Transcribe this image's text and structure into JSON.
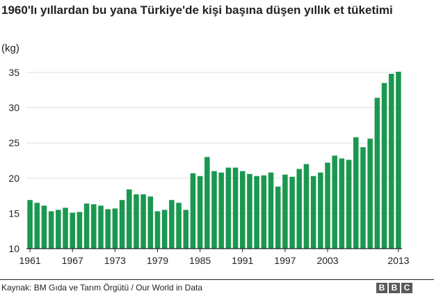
{
  "header": {
    "title": "1960'lı yıllardan bu yana Türkiye'de kişi başına düşen yıllık et tüketimi",
    "unit": "(kg)"
  },
  "footer": {
    "source": "Kaynak: BM Gıda ve Tarım Örgütü / Our World in Data",
    "logo": [
      "B",
      "B",
      "C"
    ]
  },
  "colors": {
    "bar": "#1a9850",
    "grid": "#dddddd",
    "axis": "#222222"
  },
  "chart_data": {
    "type": "bar",
    "title": "1960'lı yıllardan bu yana Türkiye'de kişi başına düşen yıllık et tüketimi",
    "ylabel": "(kg)",
    "xlabel": "",
    "ylim": [
      10,
      35
    ],
    "yticks": [
      10,
      15,
      20,
      25,
      30,
      35
    ],
    "xticks": [
      "1961",
      "1967",
      "1973",
      "1979",
      "1985",
      "1991",
      "1997",
      "2003",
      "2013"
    ],
    "grid": true,
    "categories": [
      "1961",
      "1962",
      "1963",
      "1964",
      "1965",
      "1966",
      "1967",
      "1968",
      "1969",
      "1970",
      "1971",
      "1972",
      "1973",
      "1974",
      "1975",
      "1976",
      "1977",
      "1978",
      "1979",
      "1980",
      "1981",
      "1982",
      "1983",
      "1984",
      "1985",
      "1986",
      "1987",
      "1988",
      "1989",
      "1990",
      "1991",
      "1992",
      "1993",
      "1994",
      "1995",
      "1996",
      "1997",
      "1998",
      "1999",
      "2000",
      "2001",
      "2002",
      "2003",
      "2004",
      "2005",
      "2006",
      "2007",
      "2008",
      "2009",
      "2010",
      "2011",
      "2012",
      "2013"
    ],
    "values": [
      16.9,
      16.5,
      16.1,
      15.3,
      15.5,
      15.8,
      15.1,
      15.2,
      16.4,
      16.3,
      16.1,
      15.6,
      15.7,
      16.9,
      18.4,
      17.7,
      17.7,
      17.4,
      15.3,
      15.5,
      16.9,
      16.5,
      15.5,
      20.7,
      20.3,
      23.0,
      21.0,
      20.8,
      21.5,
      21.5,
      21.0,
      20.6,
      20.3,
      20.4,
      20.8,
      18.8,
      20.5,
      20.2,
      21.3,
      22.0,
      20.3,
      20.8,
      22.2,
      23.2,
      22.8,
      22.6,
      25.8,
      24.4,
      25.6,
      31.4,
      33.5,
      34.8,
      35.1
    ]
  }
}
